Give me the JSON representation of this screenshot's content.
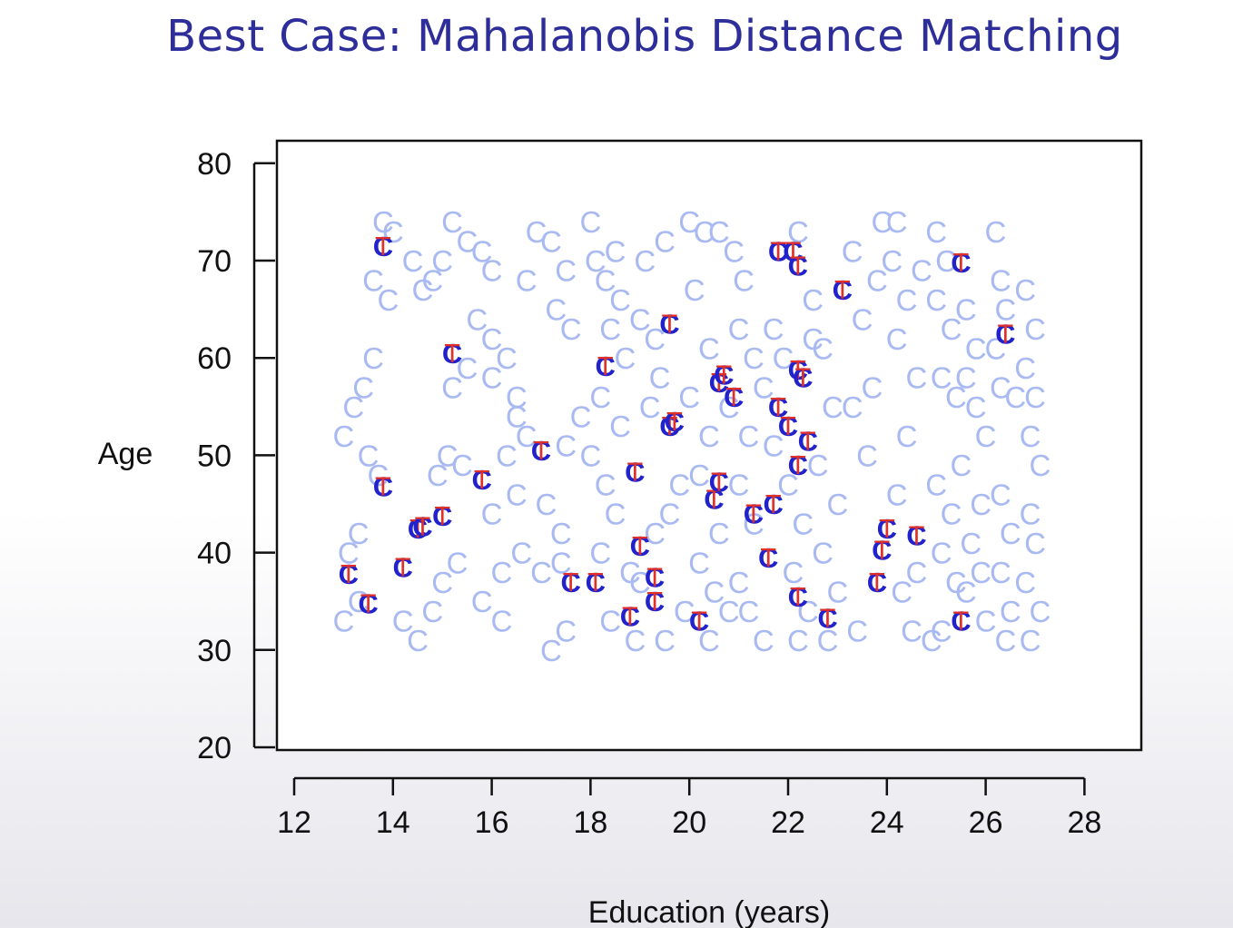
{
  "slide": {
    "title": "Best Case: Mahalanobis Distance Matching"
  },
  "chart_data": {
    "type": "scatter",
    "title": "",
    "xlabel": "Education (years)",
    "ylabel": "Age",
    "xlim": [
      12,
      29
    ],
    "ylim": [
      20,
      80
    ],
    "xticks": [
      12,
      14,
      16,
      18,
      20,
      22,
      24,
      26,
      28
    ],
    "yticks": [
      20,
      30,
      40,
      50,
      60,
      70,
      80
    ],
    "grid": false,
    "colors": {
      "control": "#a9baf2",
      "matched_control": "#2222cc",
      "treated": "#e0302a",
      "axis": "#111111"
    },
    "series": [
      {
        "name": "C",
        "marker": "C",
        "points": [
          [
            13.0,
            33
          ],
          [
            13.3,
            35
          ],
          [
            13.1,
            40
          ],
          [
            13.0,
            52
          ],
          [
            13.2,
            55
          ],
          [
            13.4,
            57
          ],
          [
            13.5,
            50
          ],
          [
            13.7,
            48
          ],
          [
            13.3,
            42
          ],
          [
            13.6,
            60
          ],
          [
            13.8,
            74
          ],
          [
            14.0,
            73
          ],
          [
            13.6,
            68
          ],
          [
            13.9,
            66
          ],
          [
            14.4,
            70
          ],
          [
            14.6,
            67
          ],
          [
            14.8,
            68
          ],
          [
            15.0,
            70
          ],
          [
            14.2,
            33
          ],
          [
            14.5,
            31
          ],
          [
            14.8,
            34
          ],
          [
            15.0,
            37
          ],
          [
            15.3,
            39
          ],
          [
            14.9,
            48
          ],
          [
            15.1,
            50
          ],
          [
            15.4,
            49
          ],
          [
            15.2,
            57
          ],
          [
            15.5,
            59
          ],
          [
            15.2,
            74
          ],
          [
            15.5,
            72
          ],
          [
            15.8,
            71
          ],
          [
            16.0,
            69
          ],
          [
            15.7,
            64
          ],
          [
            16.0,
            62
          ],
          [
            16.3,
            60
          ],
          [
            16.0,
            58
          ],
          [
            16.5,
            56
          ],
          [
            16.5,
            54
          ],
          [
            16.3,
            50
          ],
          [
            16.7,
            52
          ],
          [
            16.5,
            46
          ],
          [
            16.0,
            44
          ],
          [
            16.2,
            38
          ],
          [
            15.8,
            35
          ],
          [
            16.2,
            33
          ],
          [
            16.6,
            40
          ],
          [
            17.0,
            38
          ],
          [
            17.4,
            39
          ],
          [
            17.5,
            32
          ],
          [
            17.2,
            30
          ],
          [
            16.7,
            68
          ],
          [
            16.9,
            73
          ],
          [
            17.2,
            72
          ],
          [
            17.5,
            69
          ],
          [
            17.3,
            65
          ],
          [
            17.6,
            63
          ],
          [
            17.8,
            54
          ],
          [
            17.5,
            51
          ],
          [
            17.1,
            45
          ],
          [
            17.4,
            42
          ],
          [
            18.0,
            74
          ],
          [
            18.1,
            70
          ],
          [
            18.3,
            68
          ],
          [
            18.5,
            71
          ],
          [
            18.6,
            66
          ],
          [
            18.4,
            63
          ],
          [
            18.7,
            60
          ],
          [
            18.2,
            56
          ],
          [
            18.6,
            53
          ],
          [
            18.0,
            50
          ],
          [
            18.3,
            47
          ],
          [
            18.5,
            44
          ],
          [
            18.2,
            40
          ],
          [
            18.8,
            38
          ],
          [
            18.4,
            33
          ],
          [
            18.9,
            31
          ],
          [
            19.0,
            64
          ],
          [
            19.3,
            62
          ],
          [
            19.1,
            70
          ],
          [
            19.5,
            72
          ],
          [
            19.4,
            58
          ],
          [
            19.2,
            55
          ],
          [
            19.8,
            47
          ],
          [
            19.6,
            44
          ],
          [
            19.3,
            42
          ],
          [
            19.0,
            37
          ],
          [
            19.5,
            31
          ],
          [
            19.9,
            34
          ],
          [
            20.0,
            74
          ],
          [
            20.3,
            73
          ],
          [
            20.1,
            67
          ],
          [
            20.4,
            61
          ],
          [
            20.0,
            56
          ],
          [
            20.4,
            52
          ],
          [
            20.2,
            48
          ],
          [
            20.6,
            42
          ],
          [
            20.2,
            39
          ],
          [
            20.5,
            36
          ],
          [
            20.8,
            34
          ],
          [
            20.4,
            31
          ],
          [
            20.6,
            73
          ],
          [
            20.9,
            71
          ],
          [
            21.1,
            68
          ],
          [
            21.0,
            63
          ],
          [
            21.3,
            60
          ],
          [
            20.8,
            55
          ],
          [
            21.2,
            52
          ],
          [
            21.0,
            47
          ],
          [
            21.3,
            43
          ],
          [
            21.0,
            37
          ],
          [
            21.2,
            34
          ],
          [
            21.5,
            31
          ],
          [
            21.7,
            63
          ],
          [
            21.9,
            60
          ],
          [
            21.5,
            57
          ],
          [
            21.7,
            51
          ],
          [
            22.0,
            47
          ],
          [
            22.3,
            43
          ],
          [
            22.1,
            38
          ],
          [
            22.4,
            34
          ],
          [
            22.2,
            31
          ],
          [
            22.5,
            62
          ],
          [
            22.2,
            73
          ],
          [
            22.5,
            66
          ],
          [
            22.7,
            61
          ],
          [
            22.9,
            55
          ],
          [
            22.6,
            49
          ],
          [
            23.0,
            45
          ],
          [
            22.7,
            40
          ],
          [
            23.0,
            36
          ],
          [
            22.8,
            31
          ],
          [
            23.4,
            32
          ],
          [
            23.3,
            55
          ],
          [
            23.6,
            50
          ],
          [
            23.7,
            57
          ],
          [
            23.5,
            64
          ],
          [
            23.3,
            71
          ],
          [
            23.8,
            68
          ],
          [
            23.9,
            74
          ],
          [
            24.2,
            74
          ],
          [
            24.1,
            70
          ],
          [
            24.4,
            66
          ],
          [
            24.2,
            62
          ],
          [
            24.6,
            58
          ],
          [
            24.4,
            52
          ],
          [
            24.2,
            46
          ],
          [
            24.6,
            38
          ],
          [
            24.3,
            36
          ],
          [
            24.5,
            32
          ],
          [
            24.9,
            31
          ],
          [
            24.7,
            69
          ],
          [
            25.0,
            73
          ],
          [
            25.2,
            70
          ],
          [
            25.0,
            66
          ],
          [
            25.3,
            63
          ],
          [
            25.1,
            58
          ],
          [
            25.4,
            56
          ],
          [
            25.0,
            47
          ],
          [
            25.3,
            44
          ],
          [
            25.1,
            40
          ],
          [
            25.4,
            37
          ],
          [
            25.1,
            32
          ],
          [
            25.6,
            65
          ],
          [
            25.8,
            61
          ],
          [
            25.6,
            58
          ],
          [
            25.8,
            55
          ],
          [
            25.5,
            49
          ],
          [
            25.9,
            45
          ],
          [
            25.7,
            41
          ],
          [
            25.9,
            38
          ],
          [
            25.6,
            36
          ],
          [
            26.0,
            33
          ],
          [
            26.2,
            73
          ],
          [
            26.3,
            68
          ],
          [
            26.4,
            65
          ],
          [
            26.2,
            61
          ],
          [
            26.3,
            57
          ],
          [
            26.6,
            56
          ],
          [
            26.0,
            52
          ],
          [
            26.3,
            46
          ],
          [
            26.5,
            42
          ],
          [
            26.3,
            38
          ],
          [
            26.5,
            34
          ],
          [
            26.4,
            31
          ],
          [
            26.8,
            67
          ],
          [
            27.0,
            63
          ],
          [
            26.8,
            59
          ],
          [
            27.0,
            56
          ],
          [
            26.9,
            52
          ],
          [
            27.1,
            49
          ],
          [
            26.9,
            44
          ],
          [
            27.0,
            41
          ],
          [
            26.8,
            37
          ],
          [
            27.1,
            34
          ],
          [
            26.9,
            31
          ]
        ]
      },
      {
        "name": "T",
        "marker": "T",
        "points": [
          [
            13.8,
            71.5
          ],
          [
            15.2,
            60.5
          ],
          [
            13.1,
            37.8
          ],
          [
            13.5,
            34.8
          ],
          [
            14.2,
            38.5
          ],
          [
            13.8,
            46.8
          ],
          [
            14.5,
            42.5
          ],
          [
            14.6,
            42.7
          ],
          [
            15.0,
            43.8
          ],
          [
            15.8,
            47.5
          ],
          [
            17.0,
            50.5
          ],
          [
            17.6,
            37.0
          ],
          [
            18.1,
            37.0
          ],
          [
            18.3,
            59.2
          ],
          [
            18.9,
            48.3
          ],
          [
            19.0,
            40.7
          ],
          [
            19.3,
            37.5
          ],
          [
            19.3,
            35.0
          ],
          [
            18.8,
            33.5
          ],
          [
            19.6,
            53.0
          ],
          [
            19.7,
            53.5
          ],
          [
            19.6,
            63.5
          ],
          [
            20.2,
            33.0
          ],
          [
            20.5,
            45.5
          ],
          [
            20.6,
            47.3
          ],
          [
            20.6,
            57.5
          ],
          [
            20.7,
            58.3
          ],
          [
            20.9,
            56.0
          ],
          [
            21.3,
            44.0
          ],
          [
            21.6,
            39.5
          ],
          [
            21.7,
            45.0
          ],
          [
            21.8,
            55.0
          ],
          [
            21.8,
            71.0
          ],
          [
            22.1,
            71.0
          ],
          [
            22.0,
            53.0
          ],
          [
            22.2,
            49.0
          ],
          [
            22.4,
            51.5
          ],
          [
            22.2,
            58.8
          ],
          [
            22.3,
            58.0
          ],
          [
            22.2,
            69.5
          ],
          [
            22.2,
            35.5
          ],
          [
            22.8,
            33.3
          ],
          [
            23.1,
            67.0
          ],
          [
            23.8,
            37.0
          ],
          [
            23.9,
            40.3
          ],
          [
            24.0,
            42.5
          ],
          [
            24.6,
            41.8
          ],
          [
            25.5,
            69.8
          ],
          [
            25.5,
            33.0
          ],
          [
            26.4,
            62.5
          ]
        ]
      }
    ]
  }
}
